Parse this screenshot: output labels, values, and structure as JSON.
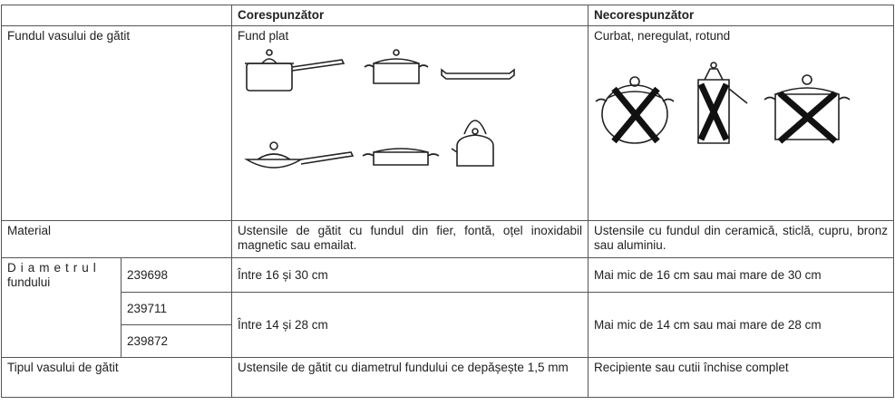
{
  "table": {
    "header": [
      "Corespunzător",
      "Necorespunzător"
    ],
    "rows": [
      {
        "label": "Fundul vasului de gătit",
        "good": "Fund plat",
        "bad": "Curbat, neregulat, rotund"
      },
      {
        "label": "Material",
        "good": "Ustensile de gătit cu fundul din fier, fontă, oțel inoxidabil magnetic sau emailat.",
        "bad": "Ustensile cu fundul din ceramică, sticlă, cupru, bronz sau aluminiu."
      },
      {
        "label_line1": "Diametrul",
        "label_line2": "fundului",
        "models": [
          "239698",
          "239711",
          "239872"
        ],
        "good_0": "Între 16 și 30 cm",
        "bad_0": "Mai mic de 16 cm sau mai mare de 30 cm",
        "good_1": "Între 14 și 28 cm",
        "bad_1": "Mai mic de 14 cm sau mai mare de 28 cm"
      },
      {
        "label": "Tipul vasului de gătit",
        "good": "Ustensile de gătit cu diametrul fundului ce depășește 1,5 mm",
        "bad": "Recipiente sau cutii închise complet"
      }
    ]
  }
}
